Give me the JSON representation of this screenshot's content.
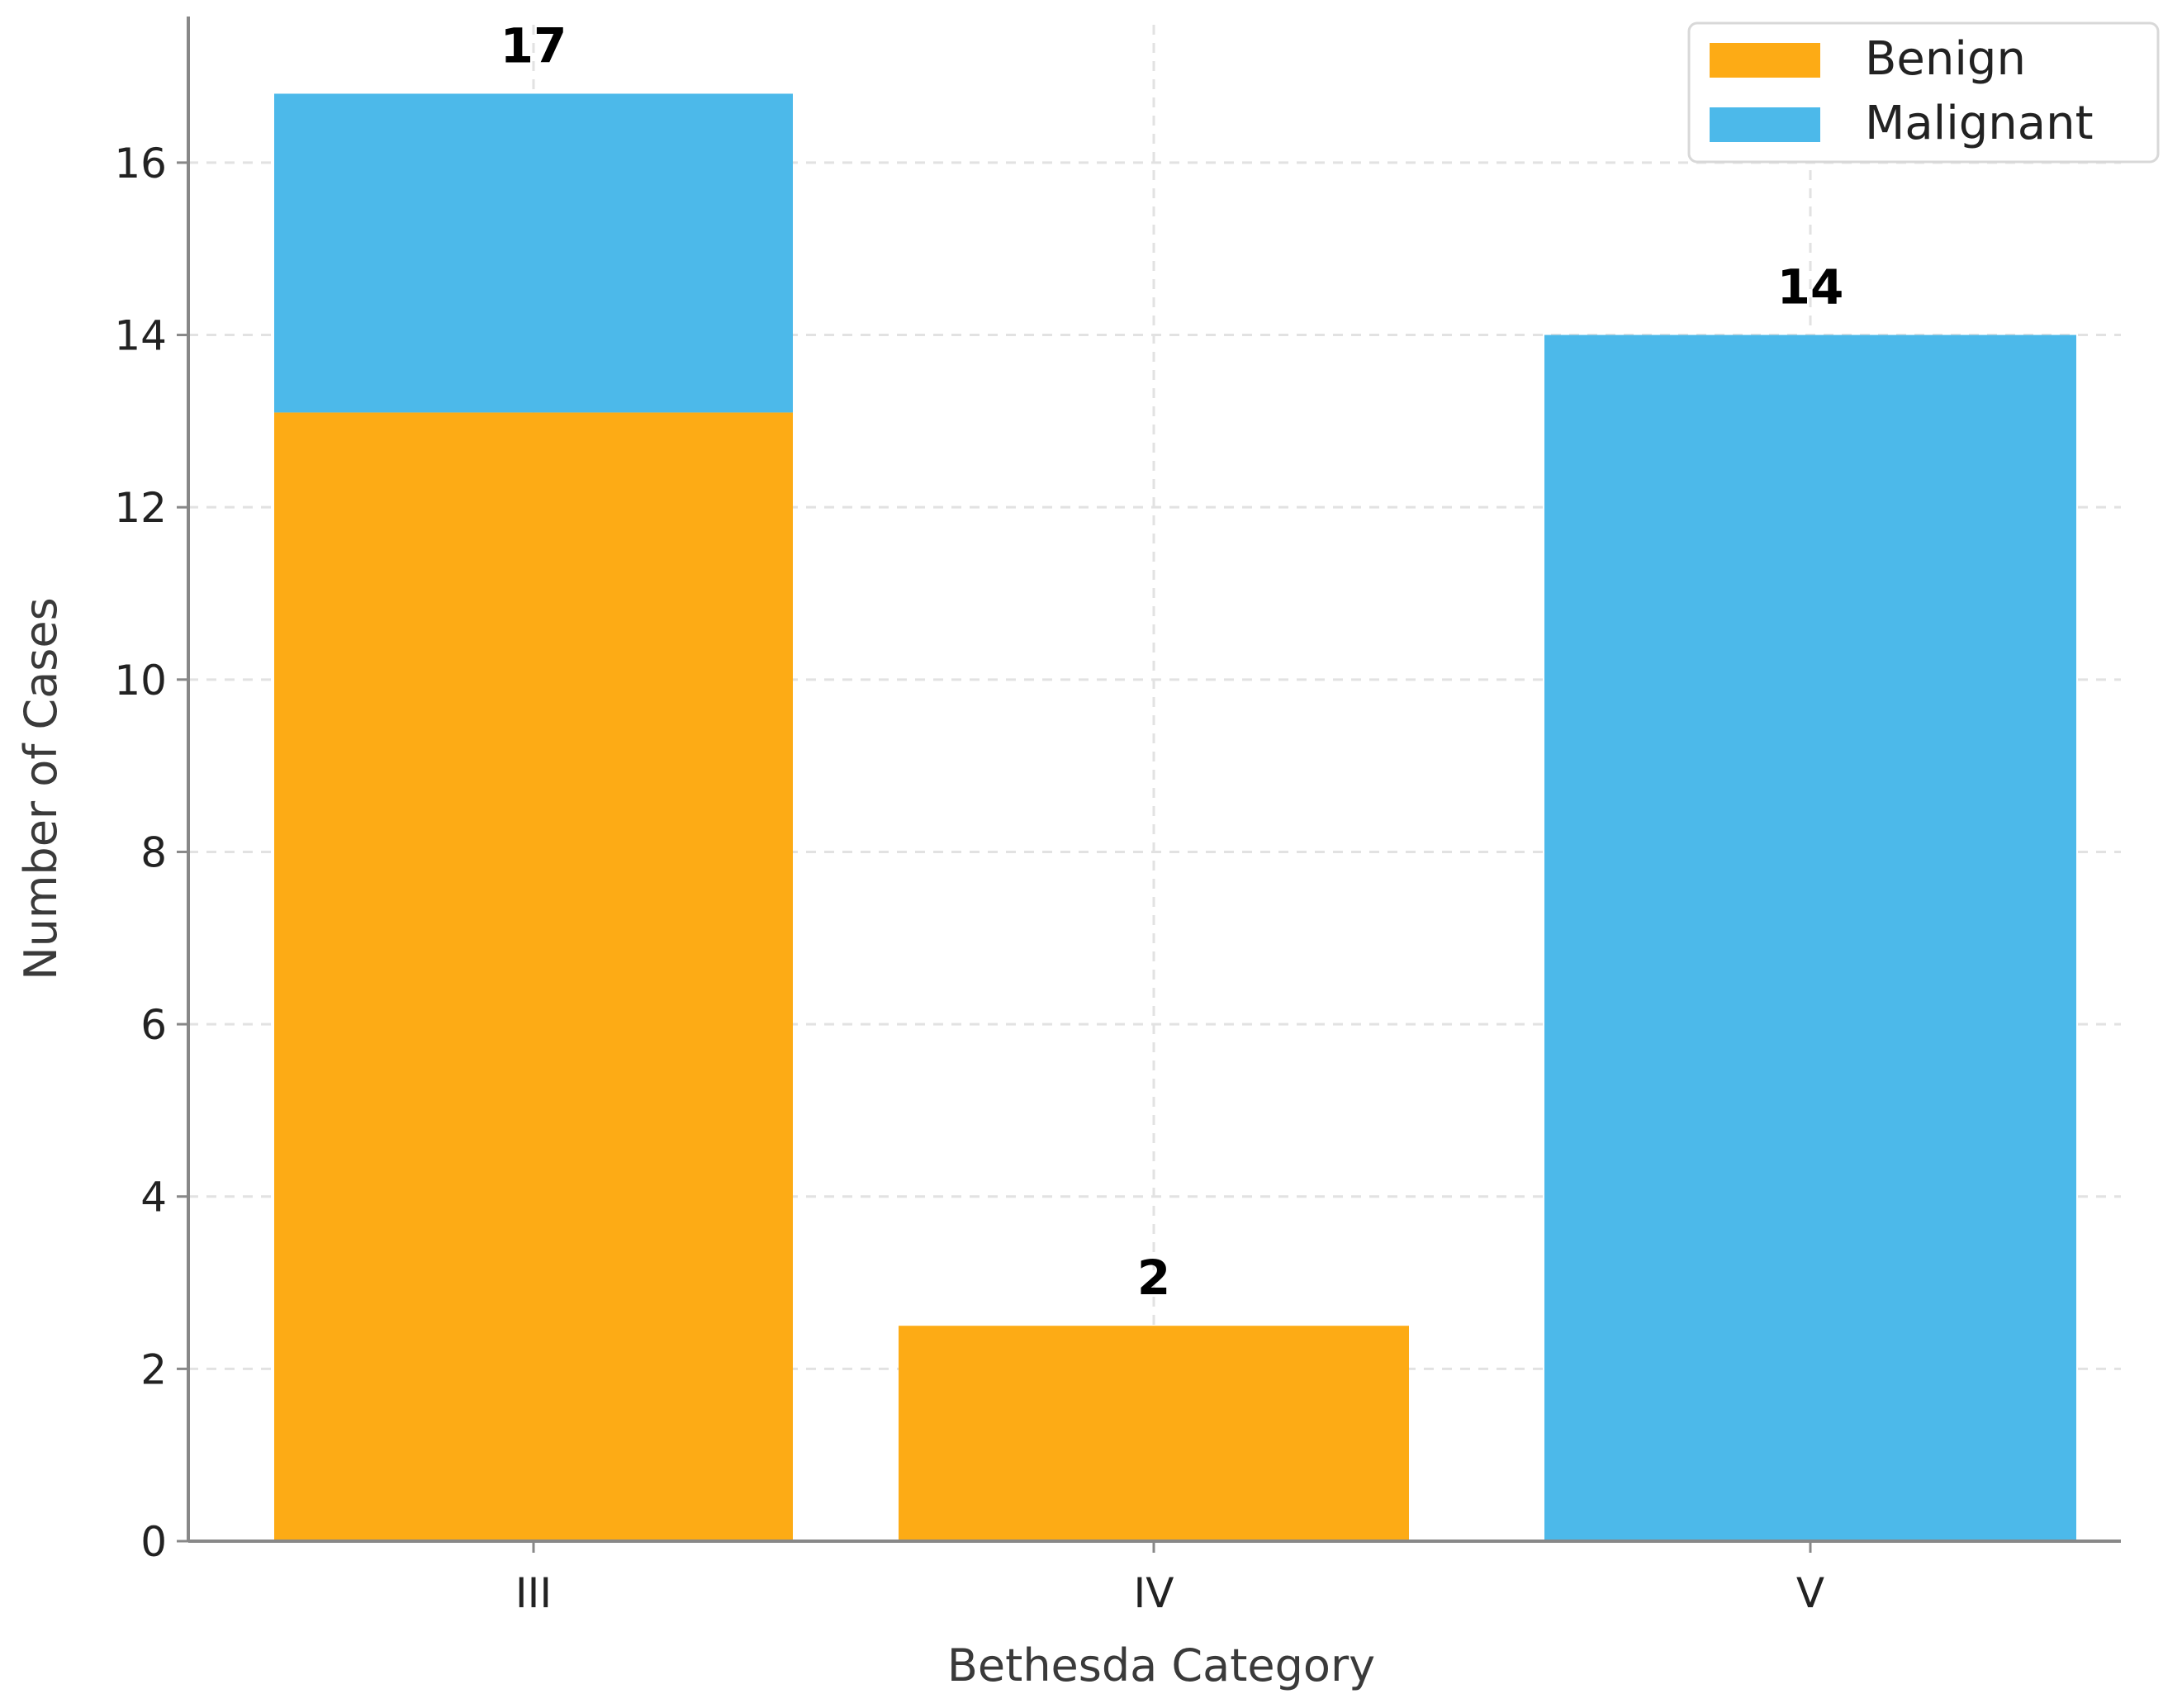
{
  "chart_data": {
    "type": "bar",
    "stacked": true,
    "categories": [
      "III",
      "IV",
      "V"
    ],
    "series": [
      {
        "name": "Benign",
        "color": "#FDAB15",
        "values": [
          13.1,
          2.5,
          0
        ]
      },
      {
        "name": "Malignant",
        "color": "#4CB9EA",
        "values": [
          3.7,
          0,
          14
        ]
      }
    ],
    "totals_labels": [
      "17",
      "2",
      "14"
    ],
    "totals_values": [
      16.8,
      2.5,
      14
    ],
    "xlabel": "Bethesda Category",
    "ylabel": "Number of Cases",
    "ylim": [
      0,
      17.6
    ],
    "yticks": [
      0,
      2,
      4,
      6,
      8,
      10,
      12,
      14,
      16
    ],
    "grid": true,
    "legend_position": "top-right"
  }
}
